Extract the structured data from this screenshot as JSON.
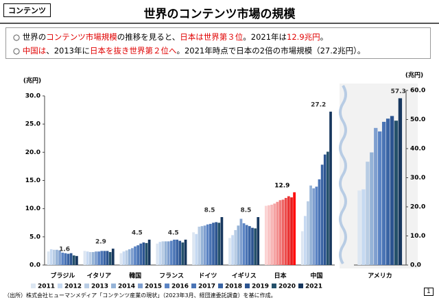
{
  "tag": "コンテンツ",
  "title": "世界のコンテンツ市場の規模",
  "bullets": [
    [
      {
        "text": "○"
      },
      {
        "text": " 世界の"
      },
      {
        "text": "コンテンツ市場規模",
        "red": true
      },
      {
        "text": "の推移を見ると、"
      },
      {
        "text": "日本は世界第３位",
        "red": true
      },
      {
        "text": "。2021年は"
      },
      {
        "text": "12.9兆円",
        "red": true
      },
      {
        "text": "。"
      }
    ],
    [
      {
        "text": "○"
      },
      {
        "text": " "
      },
      {
        "text": "中国は",
        "red": true
      },
      {
        "text": "、2013年に"
      },
      {
        "text": "日本を抜き世界第２位へ",
        "red": true
      },
      {
        "text": "。2021年時点で日本の2倍の市場規模（27.2兆円）。"
      }
    ]
  ],
  "source": "（出所）株式会社ヒューマンメディア「コンテンツ産業の現状」（2023年3月、経団連委託調査）を基に作成。",
  "page_number": "1",
  "chart_data": [
    {
      "type": "bar",
      "unit_label": "(兆円)",
      "categories": [
        "ブラジル",
        "イタリア",
        "韓国",
        "フランス",
        "ドイツ",
        "イギリス",
        "日本",
        "中国"
      ],
      "highlight_category": "日本",
      "data_labels": "last-series",
      "ylim": [
        0,
        30
      ],
      "yticks": [
        {
          "value": 0,
          "label": "0.0"
        },
        {
          "value": 5,
          "label": "5.0"
        },
        {
          "value": 10,
          "label": "10.0"
        },
        {
          "value": 15,
          "label": "15.0"
        },
        {
          "value": 20,
          "label": "20.0"
        },
        {
          "value": 25,
          "label": "25.0"
        },
        {
          "value": 30,
          "label": "30.0"
        }
      ],
      "legend": "bottom",
      "series": [
        {
          "name": "2011",
          "color": "#dce6f2",
          "highlight_color": "#fbd3d3",
          "values": [
            2.4,
            2.5,
            2.1,
            3.8,
            5.8,
            4.8,
            10.5,
            6.0
          ]
        },
        {
          "name": "2012",
          "color": "#c6d9f1",
          "highlight_color": "#f9c4c4",
          "values": [
            2.8,
            2.4,
            2.4,
            4.1,
            5.5,
            5.3,
            10.6,
            8.7
          ]
        },
        {
          "name": "2013",
          "color": "#b8cce4",
          "highlight_color": "#f7b5b5",
          "values": [
            2.7,
            2.3,
            2.6,
            4.2,
            6.8,
            6.2,
            10.7,
            11.3
          ]
        },
        {
          "name": "2014",
          "color": "#95b3d7",
          "highlight_color": "#f5a3a3",
          "values": [
            2.7,
            2.3,
            2.8,
            4.2,
            6.9,
            7.0,
            10.9,
            14.1
          ]
        },
        {
          "name": "2015",
          "color": "#7f9fcf",
          "highlight_color": "#f39090",
          "values": [
            2.6,
            2.4,
            3.0,
            4.2,
            7.0,
            8.2,
            11.2,
            13.6
          ]
        },
        {
          "name": "2016",
          "color": "#5b84c4",
          "highlight_color": "#f07a7a",
          "values": [
            2.2,
            2.4,
            3.3,
            4.3,
            7.2,
            7.4,
            11.5,
            13.9
          ]
        },
        {
          "name": "2017",
          "color": "#4a74b5",
          "highlight_color": "#ee6464",
          "values": [
            2.1,
            2.5,
            3.5,
            4.5,
            7.3,
            7.1,
            11.6,
            15.2
          ]
        },
        {
          "name": "2018",
          "color": "#3a64a4",
          "highlight_color": "#ec4c4c",
          "values": [
            2.0,
            2.5,
            3.8,
            4.5,
            7.5,
            6.9,
            11.9,
            17.8
          ]
        },
        {
          "name": "2019",
          "color": "#2c5490",
          "highlight_color": "#ea3434",
          "values": [
            2.1,
            2.5,
            4.0,
            4.3,
            7.6,
            6.6,
            12.2,
            19.6
          ]
        },
        {
          "name": "2020",
          "color": "#24506a",
          "highlight_color": "#e81c1c",
          "values": [
            1.7,
            2.3,
            3.9,
            4.0,
            7.5,
            6.5,
            12.0,
            20.1
          ]
        },
        {
          "name": "2021",
          "color": "#17375e",
          "highlight_color": "#ff0000",
          "values": [
            1.6,
            2.9,
            4.5,
            4.5,
            8.5,
            8.5,
            12.9,
            27.2
          ]
        }
      ]
    },
    {
      "type": "bar",
      "unit_label": "(兆円)",
      "categories": [
        "アメリカ"
      ],
      "data_labels": "last-series",
      "axis_side": "right",
      "ylim": [
        0,
        60
      ],
      "yticks": [
        {
          "value": 0,
          "label": "0.0"
        },
        {
          "value": 10,
          "label": "10.0"
        },
        {
          "value": 20,
          "label": "20.0"
        },
        {
          "value": 30,
          "label": "30.0"
        },
        {
          "value": 40,
          "label": "40.0"
        },
        {
          "value": 50,
          "label": "50.0"
        },
        {
          "value": 60,
          "label": "60.0"
        }
      ],
      "series": [
        {
          "color": "#dce6f2",
          "values": [
            25.6
          ]
        },
        {
          "color": "#c6d9f1",
          "values": [
            26.0
          ]
        },
        {
          "color": "#b8cce4",
          "values": [
            35.5
          ]
        },
        {
          "color": "#95b3d7",
          "values": [
            38.7
          ]
        },
        {
          "color": "#7f9fcf",
          "values": [
            47.1
          ]
        },
        {
          "color": "#5b84c4",
          "values": [
            45.9
          ]
        },
        {
          "color": "#4a74b5",
          "values": [
            49.2
          ]
        },
        {
          "color": "#3a64a4",
          "values": [
            50.3
          ]
        },
        {
          "color": "#2c5490",
          "values": [
            51.2
          ]
        },
        {
          "color": "#24506a",
          "values": [
            49.6
          ]
        },
        {
          "color": "#17375e",
          "values": [
            57.3
          ]
        }
      ]
    }
  ]
}
